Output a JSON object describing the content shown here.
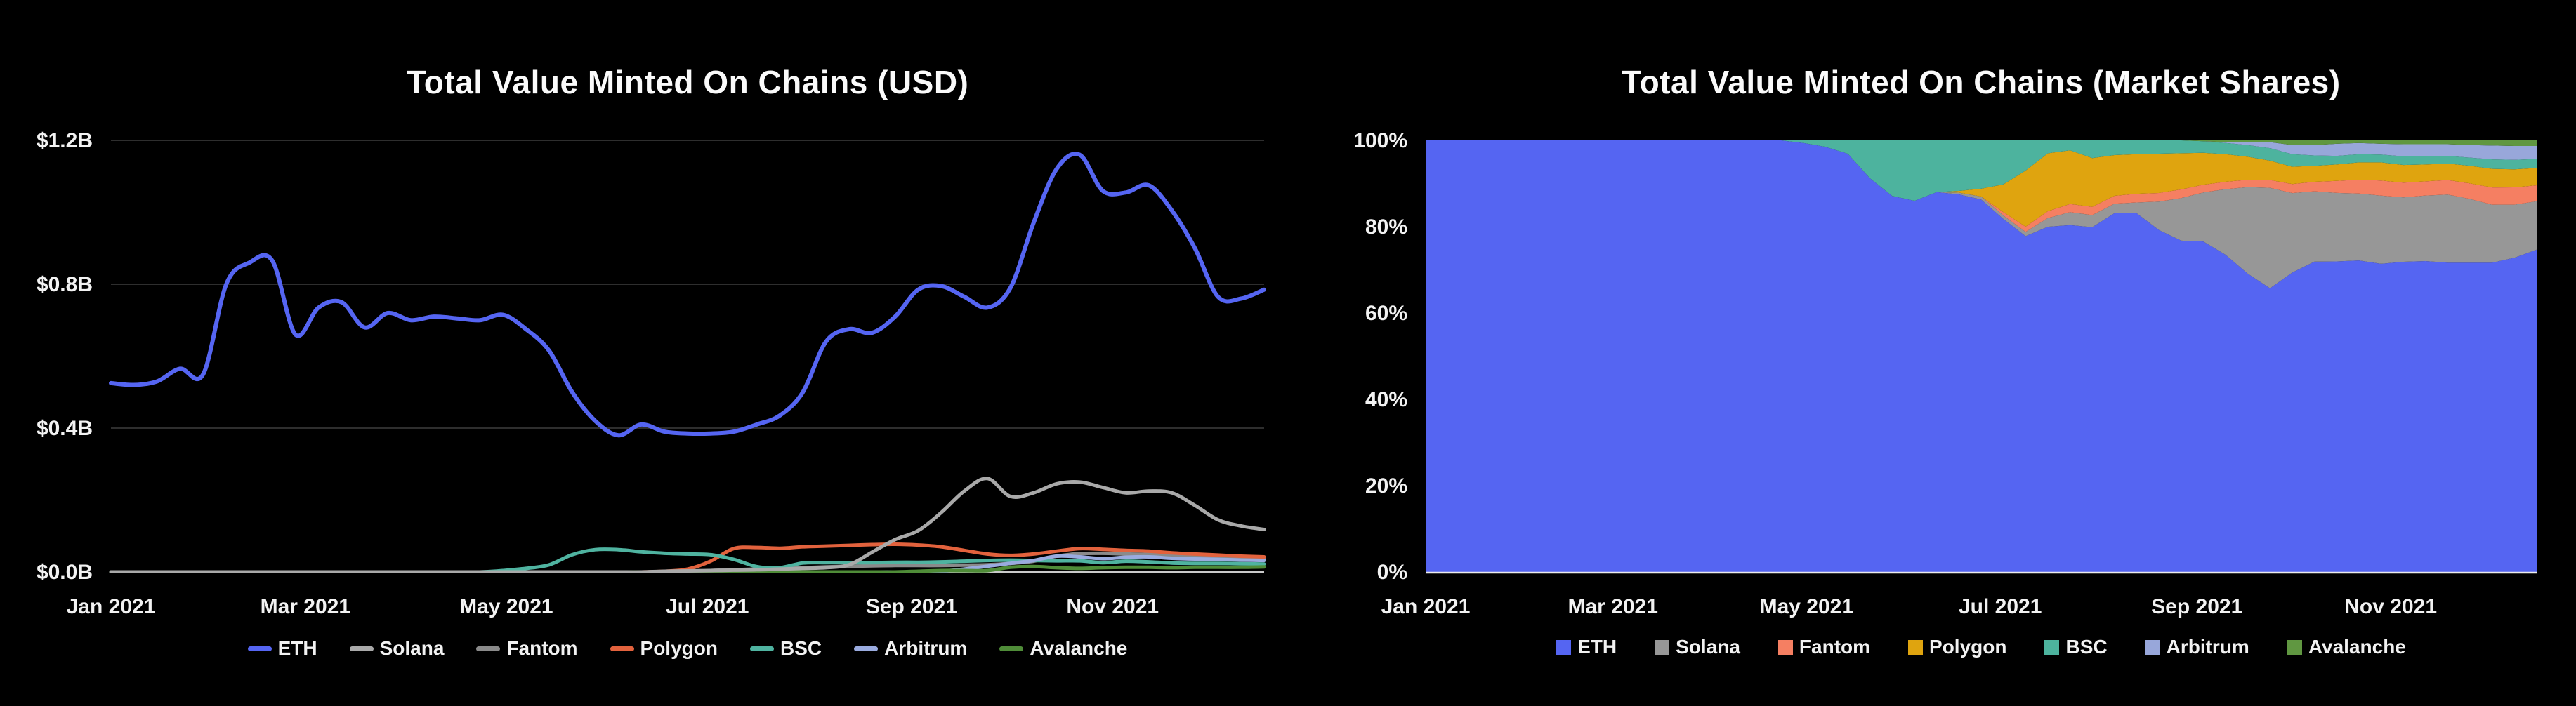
{
  "page": {
    "background": "#000000",
    "text_color": "#f2f2f2",
    "grid_color": "#2e2e2e",
    "axis_color": "#c9c9c9"
  },
  "chart_data": [
    {
      "id": "usd",
      "type": "line",
      "title": "Total Value Minted On Chains (USD)",
      "ylabel": "",
      "xlabel": "",
      "ylim": [
        0,
        1.2
      ],
      "grid": true,
      "legend_position": "bottom",
      "legend_marker": "dash",
      "y_ticks": [
        {
          "label": "$1.2B",
          "v": 1.2
        },
        {
          "label": "$0.8B",
          "v": 0.8
        },
        {
          "label": "$0.4B",
          "v": 0.4
        },
        {
          "label": "$0.0B",
          "v": 0.0
        }
      ],
      "x_ticks": [
        {
          "label": "Jan 2021",
          "week": 0
        },
        {
          "label": "Mar 2021",
          "week": 8.43
        },
        {
          "label": "May 2021",
          "week": 17.14
        },
        {
          "label": "Jul 2021",
          "week": 25.86
        },
        {
          "label": "Sep 2021",
          "week": 34.71
        },
        {
          "label": "Nov 2021",
          "week": 43.43
        }
      ],
      "x_range_weeks": 50,
      "unit": "B USD",
      "series": [
        {
          "name": "ETH",
          "color": "#5565f2",
          "width": 6,
          "values": [
            0.525,
            0.52,
            0.53,
            0.565,
            0.55,
            0.8,
            0.86,
            0.865,
            0.66,
            0.735,
            0.75,
            0.68,
            0.72,
            0.7,
            0.71,
            0.705,
            0.7,
            0.715,
            0.675,
            0.615,
            0.5,
            0.42,
            0.38,
            0.41,
            0.39,
            0.385,
            0.385,
            0.39,
            0.41,
            0.435,
            0.5,
            0.64,
            0.675,
            0.665,
            0.71,
            0.785,
            0.795,
            0.765,
            0.735,
            0.79,
            0.97,
            1.12,
            1.16,
            1.06,
            1.055,
            1.075,
            1.005,
            0.9,
            0.765,
            0.76,
            0.785
          ]
        },
        {
          "name": "Solana",
          "color": "#a9a9a9",
          "width": 5,
          "values": [
            0,
            0,
            0,
            0,
            0,
            0,
            0,
            0,
            0,
            0,
            0,
            0,
            0,
            0,
            0,
            0,
            0,
            0,
            0,
            0,
            0,
            0,
            0,
            0,
            0.002,
            0.003,
            0.004,
            0.005,
            0.006,
            0.008,
            0.01,
            0.012,
            0.02,
            0.055,
            0.09,
            0.115,
            0.165,
            0.225,
            0.26,
            0.21,
            0.22,
            0.245,
            0.25,
            0.235,
            0.22,
            0.225,
            0.22,
            0.185,
            0.145,
            0.128,
            0.118
          ]
        },
        {
          "name": "Fantom",
          "color": "#8a8a8a",
          "width": 5,
          "values": [
            0,
            0,
            0,
            0,
            0,
            0,
            0,
            0,
            0,
            0,
            0,
            0,
            0,
            0,
            0,
            0,
            0,
            0,
            0,
            0,
            0,
            0,
            0,
            0,
            0,
            0,
            0.004,
            0.006,
            0.008,
            0.01,
            0.012,
            0.014,
            0.016,
            0.017,
            0.018,
            0.018,
            0.018,
            0.019,
            0.02,
            0.024,
            0.03,
            0.044,
            0.051,
            0.052,
            0.05,
            0.049,
            0.047,
            0.045,
            0.043,
            0.041,
            0.039
          ]
        },
        {
          "name": "Polygon",
          "color": "#e2623d",
          "width": 5,
          "values": [
            0,
            0,
            0,
            0,
            0,
            0,
            0,
            0,
            0,
            0,
            0,
            0,
            0,
            0,
            0,
            0,
            0,
            0,
            0,
            0,
            0,
            0,
            0,
            0,
            0.002,
            0.008,
            0.03,
            0.065,
            0.068,
            0.066,
            0.07,
            0.072,
            0.074,
            0.076,
            0.077,
            0.075,
            0.07,
            0.06,
            0.05,
            0.046,
            0.05,
            0.058,
            0.065,
            0.063,
            0.06,
            0.058,
            0.053,
            0.05,
            0.047,
            0.044,
            0.042
          ]
        },
        {
          "name": "BSC",
          "color": "#4fb3a0",
          "width": 5,
          "values": [
            0,
            0,
            0,
            0,
            0,
            0,
            0,
            0,
            0,
            0,
            0,
            0,
            0,
            0,
            0,
            0,
            0,
            0.004,
            0.01,
            0.02,
            0.048,
            0.062,
            0.062,
            0.056,
            0.052,
            0.05,
            0.048,
            0.035,
            0.015,
            0.012,
            0.025,
            0.026,
            0.026,
            0.026,
            0.027,
            0.027,
            0.028,
            0.03,
            0.032,
            0.033,
            0.032,
            0.031,
            0.031,
            0.026,
            0.03,
            0.028,
            0.025,
            0.024,
            0.024,
            0.023,
            0.022
          ]
        },
        {
          "name": "Arbitrum",
          "color": "#9aabdf",
          "width": 5,
          "values": [
            0,
            0,
            0,
            0,
            0,
            0,
            0,
            0,
            0,
            0,
            0,
            0,
            0,
            0,
            0,
            0,
            0,
            0,
            0,
            0,
            0,
            0,
            0,
            0,
            0,
            0,
            0,
            0,
            0,
            0,
            0,
            0,
            0,
            0,
            0,
            0,
            0.002,
            0.008,
            0.016,
            0.024,
            0.032,
            0.044,
            0.042,
            0.037,
            0.041,
            0.042,
            0.038,
            0.036,
            0.035,
            0.033,
            0.032
          ]
        },
        {
          "name": "Avalanche",
          "color": "#4f8c38",
          "width": 5,
          "values": [
            0,
            0,
            0,
            0,
            0,
            0,
            0,
            0,
            0,
            0,
            0,
            0,
            0,
            0,
            0,
            0,
            0,
            0,
            0,
            0,
            0,
            0,
            0,
            0,
            0,
            0,
            0,
            0,
            0,
            0,
            0,
            0,
            0,
            0,
            0,
            0.002,
            0.004,
            0.004,
            0.004,
            0.013,
            0.015,
            0.012,
            0.01,
            0.012,
            0.013,
            0.013,
            0.012,
            0.013,
            0.013,
            0.013,
            0.014
          ]
        }
      ]
    },
    {
      "id": "shares",
      "type": "area",
      "stacked_100pct": true,
      "title": "Total Value Minted On Chains (Market Shares)",
      "ylabel": "",
      "xlabel": "",
      "ylim": [
        0,
        100
      ],
      "grid": false,
      "legend_position": "bottom",
      "legend_marker": "square",
      "y_ticks": [
        {
          "label": "100%",
          "v": 100
        },
        {
          "label": "80%",
          "v": 80
        },
        {
          "label": "60%",
          "v": 60
        },
        {
          "label": "40%",
          "v": 40
        },
        {
          "label": "20%",
          "v": 20
        },
        {
          "label": "0%",
          "v": 0
        }
      ],
      "x_ticks": [
        {
          "label": "Jan 2021",
          "week": 0
        },
        {
          "label": "Mar 2021",
          "week": 8.43
        },
        {
          "label": "May 2021",
          "week": 17.14
        },
        {
          "label": "Jul 2021",
          "week": 25.86
        },
        {
          "label": "Sep 2021",
          "week": 34.71
        },
        {
          "label": "Nov 2021",
          "week": 43.43
        }
      ],
      "x_range_weeks": 50,
      "unit": "% share",
      "series": [
        {
          "name": "ETH",
          "color": "#5565f2",
          "shares": [
            100,
            100,
            100,
            100,
            100,
            100,
            100,
            100,
            100,
            100,
            100,
            100,
            100,
            100,
            100,
            100,
            100,
            99.4,
            98.5,
            96.9,
            91.2,
            87.1,
            86.0,
            88.0,
            87.4,
            86.3,
            81.7,
            77.8,
            79.9,
            80.2,
            79.8,
            82.8,
            82.6,
            79.3,
            77.0,
            76.8,
            73.5,
            68.9,
            65.8,
            69.3,
            71.9,
            72.1,
            72.1,
            71.4,
            71.8,
            72.1,
            71.8,
            71.8,
            71.6,
            72.8,
            74.6
          ]
        },
        {
          "name": "Solana",
          "color": "#979797",
          "shares": [
            0,
            0,
            0,
            0,
            0,
            0,
            0,
            0,
            0,
            0,
            0,
            0,
            0,
            0,
            0,
            0,
            0,
            0,
            0,
            0,
            0,
            0,
            0,
            0,
            0.4,
            0.7,
            0.8,
            1.0,
            2.0,
            3.0,
            2.8,
            2.2,
            2.5,
            6.6,
            9.9,
            11.4,
            15.2,
            20.0,
            23.3,
            18.4,
            16.3,
            15.9,
            15.5,
            15.8,
            14.9,
            15.2,
            15.8,
            14.8,
            13.4,
            12.3,
            11.2
          ]
        },
        {
          "name": "Fantom",
          "color": "#f57f62",
          "shares": [
            0,
            0,
            0,
            0,
            0,
            0,
            0,
            0,
            0,
            0,
            0,
            0,
            0,
            0,
            0,
            0,
            0,
            0,
            0,
            0,
            0,
            0,
            0,
            0,
            0,
            0,
            0.8,
            1.2,
            1.6,
            1.9,
            1.9,
            1.8,
            2.0,
            2.0,
            2.0,
            1.8,
            1.7,
            1.7,
            1.8,
            2.1,
            2.2,
            2.8,
            3.2,
            3.5,
            3.4,
            3.3,
            3.4,
            3.6,
            4.0,
            4.0,
            3.7
          ]
        },
        {
          "name": "Polygon",
          "color": "#dfa40f",
          "shares": [
            0,
            0,
            0,
            0,
            0,
            0,
            0,
            0,
            0,
            0,
            0,
            0,
            0,
            0,
            0,
            0,
            0,
            0,
            0,
            0,
            0,
            0,
            0,
            0,
            0.4,
            1.8,
            6.4,
            13.0,
            13.4,
            12.4,
            11.3,
            9.4,
            9.1,
            9.1,
            8.4,
            7.4,
            6.4,
            5.3,
            4.5,
            4.0,
            3.7,
            3.8,
            4.0,
            4.2,
            4.1,
            3.9,
            3.8,
            4.1,
            4.3,
            4.2,
            4.0
          ]
        },
        {
          "name": "BSC",
          "color": "#4db39e",
          "shares": [
            0,
            0,
            0,
            0,
            0,
            0,
            0,
            0,
            0,
            0,
            0,
            0,
            0,
            0,
            0,
            0,
            0,
            0.6,
            1.5,
            3.1,
            8.8,
            12.9,
            14.0,
            12.0,
            11.7,
            11.2,
            10.2,
            7.0,
            3.0,
            2.3,
            4.1,
            3.4,
            3.2,
            3.1,
            3.0,
            2.7,
            2.6,
            2.7,
            2.9,
            2.9,
            2.4,
            2.0,
            1.9,
            1.8,
            2.0,
            1.9,
            1.8,
            1.9,
            2.2,
            2.2,
            2.1
          ]
        },
        {
          "name": "Arbitrum",
          "color": "#98a7da",
          "shares": [
            0,
            0,
            0,
            0,
            0,
            0,
            0,
            0,
            0,
            0,
            0,
            0,
            0,
            0,
            0,
            0,
            0,
            0,
            0,
            0,
            0,
            0,
            0,
            0,
            0,
            0,
            0,
            0,
            0,
            0,
            0,
            0,
            0,
            0,
            0,
            0,
            0.2,
            0.7,
            1.4,
            2.1,
            2.4,
            2.8,
            2.6,
            2.5,
            2.8,
            2.8,
            2.7,
            2.9,
            3.2,
            3.2,
            3.0
          ]
        },
        {
          "name": "Avalanche",
          "color": "#609741",
          "shares": [
            0,
            0,
            0,
            0,
            0,
            0,
            0,
            0,
            0,
            0,
            0,
            0,
            0,
            0,
            0,
            0,
            0,
            0,
            0,
            0,
            0,
            0,
            0,
            0,
            0,
            0,
            0,
            0,
            0,
            0,
            0,
            0,
            0,
            0,
            0,
            0.2,
            0.4,
            0.4,
            0.4,
            1.1,
            1.1,
            0.8,
            0.6,
            0.8,
            0.9,
            0.9,
            0.9,
            1.1,
            1.2,
            1.3,
            1.3
          ]
        }
      ]
    }
  ]
}
